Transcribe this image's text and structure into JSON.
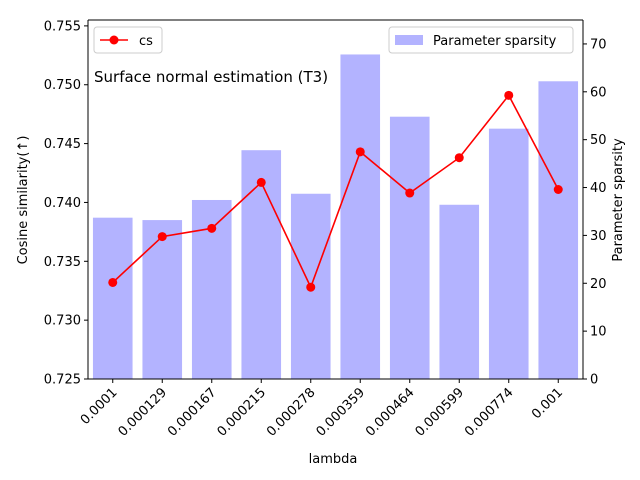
{
  "chart_data": {
    "type": "bar",
    "title": "Surface normal estimation (T3)",
    "xlabel": "lambda",
    "ylabel_left": "Cosine similarity(↑)",
    "ylabel_right": "Parameter sparsity",
    "categories": [
      "0.0001",
      "0.000129",
      "0.000167",
      "0.000215",
      "0.000278",
      "0.000359",
      "0.000464",
      "0.000599",
      "0.000774",
      "0.001"
    ],
    "ylim_left": [
      0.725,
      0.7555
    ],
    "ylim_right": [
      0,
      75
    ],
    "yticks_left": [
      0.725,
      0.73,
      0.735,
      0.74,
      0.745,
      0.75,
      0.755
    ],
    "ytick_labels_left": [
      "0.725",
      "0.730",
      "0.735",
      "0.740",
      "0.745",
      "0.750",
      "0.755"
    ],
    "yticks_right": [
      0,
      10,
      20,
      30,
      40,
      50,
      60,
      70
    ],
    "ytick_labels_right": [
      "0",
      "10",
      "20",
      "30",
      "40",
      "50",
      "60",
      "70"
    ],
    "series": [
      {
        "name": "cs",
        "type": "line",
        "axis": "left",
        "color": "#ff0000",
        "values": [
          0.7332,
          0.7371,
          0.7378,
          0.7417,
          0.7328,
          0.7443,
          0.7408,
          0.7438,
          0.7491,
          0.7411
        ]
      },
      {
        "name": "Parameter sparsity",
        "type": "bar",
        "axis": "right",
        "color": "#b3b3ff",
        "values": [
          33.7,
          33.2,
          37.4,
          47.8,
          38.7,
          67.8,
          54.8,
          36.4,
          52.3,
          62.2
        ]
      }
    ],
    "legend_left": {
      "label": "cs",
      "placement": "upper-left"
    },
    "legend_right": {
      "label": "Parameter sparsity",
      "placement": "upper-right"
    }
  }
}
